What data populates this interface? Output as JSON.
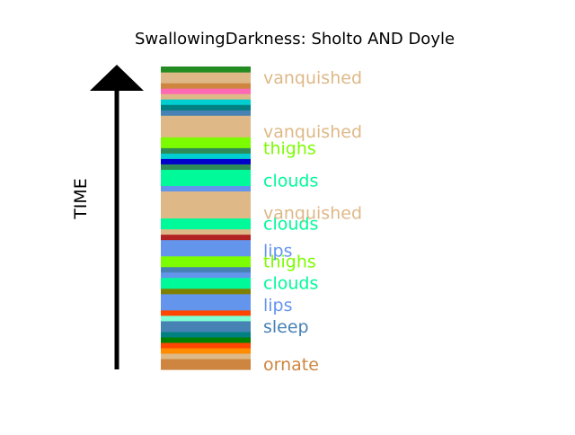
{
  "chart_data": {
    "type": "bar",
    "title": "SwallowingDarkness: Sholto AND Doyle",
    "ylabel": "TIME",
    "stripes": [
      {
        "color": "#cd853f"
      },
      {
        "color": "#cd853f"
      },
      {
        "color": "#deb887"
      },
      {
        "color": "#ff8c00"
      },
      {
        "color": "#ff4500"
      },
      {
        "color": "#008000"
      },
      {
        "color": "#008080"
      },
      {
        "color": "#4682b4"
      },
      {
        "color": "#4682b4"
      },
      {
        "color": "#7fffd4"
      },
      {
        "color": "#ff4500"
      },
      {
        "color": "#6495ed"
      },
      {
        "color": "#6495ed"
      },
      {
        "color": "#6495ed"
      },
      {
        "color": "#808000"
      },
      {
        "color": "#00fa9a"
      },
      {
        "color": "#00fa9a"
      },
      {
        "color": "#6495ed"
      },
      {
        "color": "#4682b4"
      },
      {
        "color": "#7cfc00"
      },
      {
        "color": "#7cfc00"
      },
      {
        "color": "#6495ed"
      },
      {
        "color": "#6495ed"
      },
      {
        "color": "#6495ed"
      },
      {
        "color": "#b22222"
      },
      {
        "color": "#deb887"
      },
      {
        "color": "#00fa9a"
      },
      {
        "color": "#00fa9a"
      },
      {
        "color": "#deb887"
      },
      {
        "color": "#deb887"
      },
      {
        "color": "#deb887"
      },
      {
        "color": "#deb887"
      },
      {
        "color": "#deb887"
      },
      {
        "color": "#6495ed"
      },
      {
        "color": "#00fa9a"
      },
      {
        "color": "#00fa9a"
      },
      {
        "color": "#00fa9a"
      },
      {
        "color": "#2e8b57"
      },
      {
        "color": "#0000cd"
      },
      {
        "color": "#00ced1"
      },
      {
        "color": "#2e8b57"
      },
      {
        "color": "#7cfc00"
      },
      {
        "color": "#7cfc00"
      },
      {
        "color": "#deb887"
      },
      {
        "color": "#deb887"
      },
      {
        "color": "#deb887"
      },
      {
        "color": "#deb887"
      },
      {
        "color": "#4682b4"
      },
      {
        "color": "#008080"
      },
      {
        "color": "#00ced1"
      },
      {
        "color": "#deb887"
      },
      {
        "color": "#ff69b4"
      },
      {
        "color": "#cd853f"
      },
      {
        "color": "#deb887"
      },
      {
        "color": "#deb887"
      },
      {
        "color": "#228b22"
      }
    ],
    "labels": [
      {
        "text": "ornate",
        "stripe": 1,
        "color": "#cd853f"
      },
      {
        "text": "sleep",
        "stripe": 8,
        "color": "#4682b4"
      },
      {
        "text": "lips",
        "stripe": 12,
        "color": "#6495ed"
      },
      {
        "text": "clouds",
        "stripe": 16,
        "color": "#00fa9a"
      },
      {
        "text": "thighs",
        "stripe": 20,
        "color": "#7cfc00"
      },
      {
        "text": "lips",
        "stripe": 22,
        "color": "#6495ed"
      },
      {
        "text": "clouds",
        "stripe": 27,
        "color": "#00fa9a"
      },
      {
        "text": "vanquished",
        "stripe": 29,
        "color": "#deb887"
      },
      {
        "text": "clouds",
        "stripe": 35,
        "color": "#00fa9a"
      },
      {
        "text": "thighs",
        "stripe": 41,
        "color": "#7cfc00"
      },
      {
        "text": "vanquished",
        "stripe": 44,
        "color": "#deb887"
      },
      {
        "text": "vanquished",
        "stripe": 54,
        "color": "#deb887"
      }
    ]
  }
}
